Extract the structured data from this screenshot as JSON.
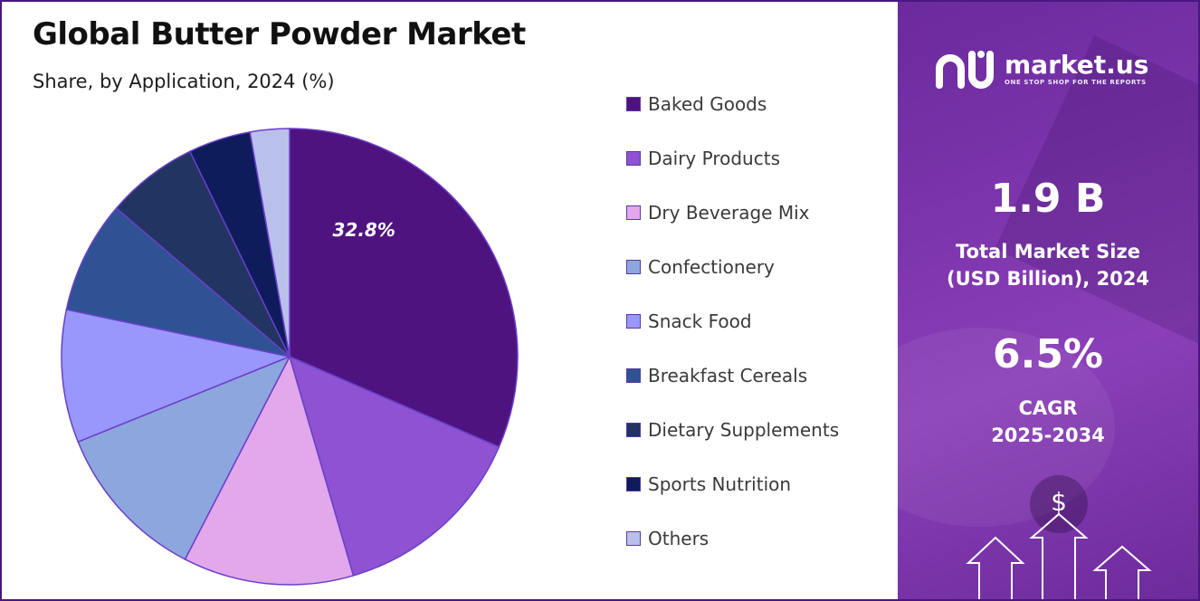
{
  "title": "Global Butter Powder Market",
  "subtitle": "Share, by Application, 2024 (%)",
  "brand": {
    "name": "market.us",
    "tagline": "ONE STOP SHOP FOR THE REPORTS"
  },
  "stats": {
    "market_size_value": "1.9 B",
    "market_size_label_line1": "Total Market Size",
    "market_size_label_line2": "(USD Billion), 2024",
    "cagr_value": "6.5%",
    "cagr_label_line1": "CAGR",
    "cagr_label_line2": "2025-2034"
  },
  "icons": {
    "dollar": "$"
  },
  "colors": {
    "accent": "#4a1780",
    "panel": "#7d35ad"
  },
  "chart_data": {
    "type": "pie",
    "title": "Global Butter Powder Market",
    "subtitle": "Share, by Application, 2024 (%)",
    "legend_position": "right",
    "slices": [
      {
        "label": "Baked Goods",
        "value": 32.8,
        "color": "#4f1380",
        "display_label": "32.8%"
      },
      {
        "label": "Dairy Products",
        "value": 14.6,
        "color": "#8e52d2",
        "display_label": ""
      },
      {
        "label": "Dry Beverage Mix",
        "value": 12.6,
        "color": "#e3a7ec",
        "display_label": ""
      },
      {
        "label": "Confectionery",
        "value": 11.8,
        "color": "#8ea6de",
        "display_label": ""
      },
      {
        "label": "Snack Food",
        "value": 9.8,
        "color": "#9997fb",
        "display_label": ""
      },
      {
        "label": "Breakfast Cereals",
        "value": 8.3,
        "color": "#2e5294",
        "display_label": ""
      },
      {
        "label": "Dietary Supplements",
        "value": 6.8,
        "color": "#223461",
        "display_label": ""
      },
      {
        "label": "Sports Nutrition",
        "value": 4.6,
        "color": "#0e1c5c",
        "display_label": ""
      },
      {
        "label": "Others",
        "value": 2.9,
        "color": "#b9c0ea",
        "display_label": ""
      }
    ]
  }
}
